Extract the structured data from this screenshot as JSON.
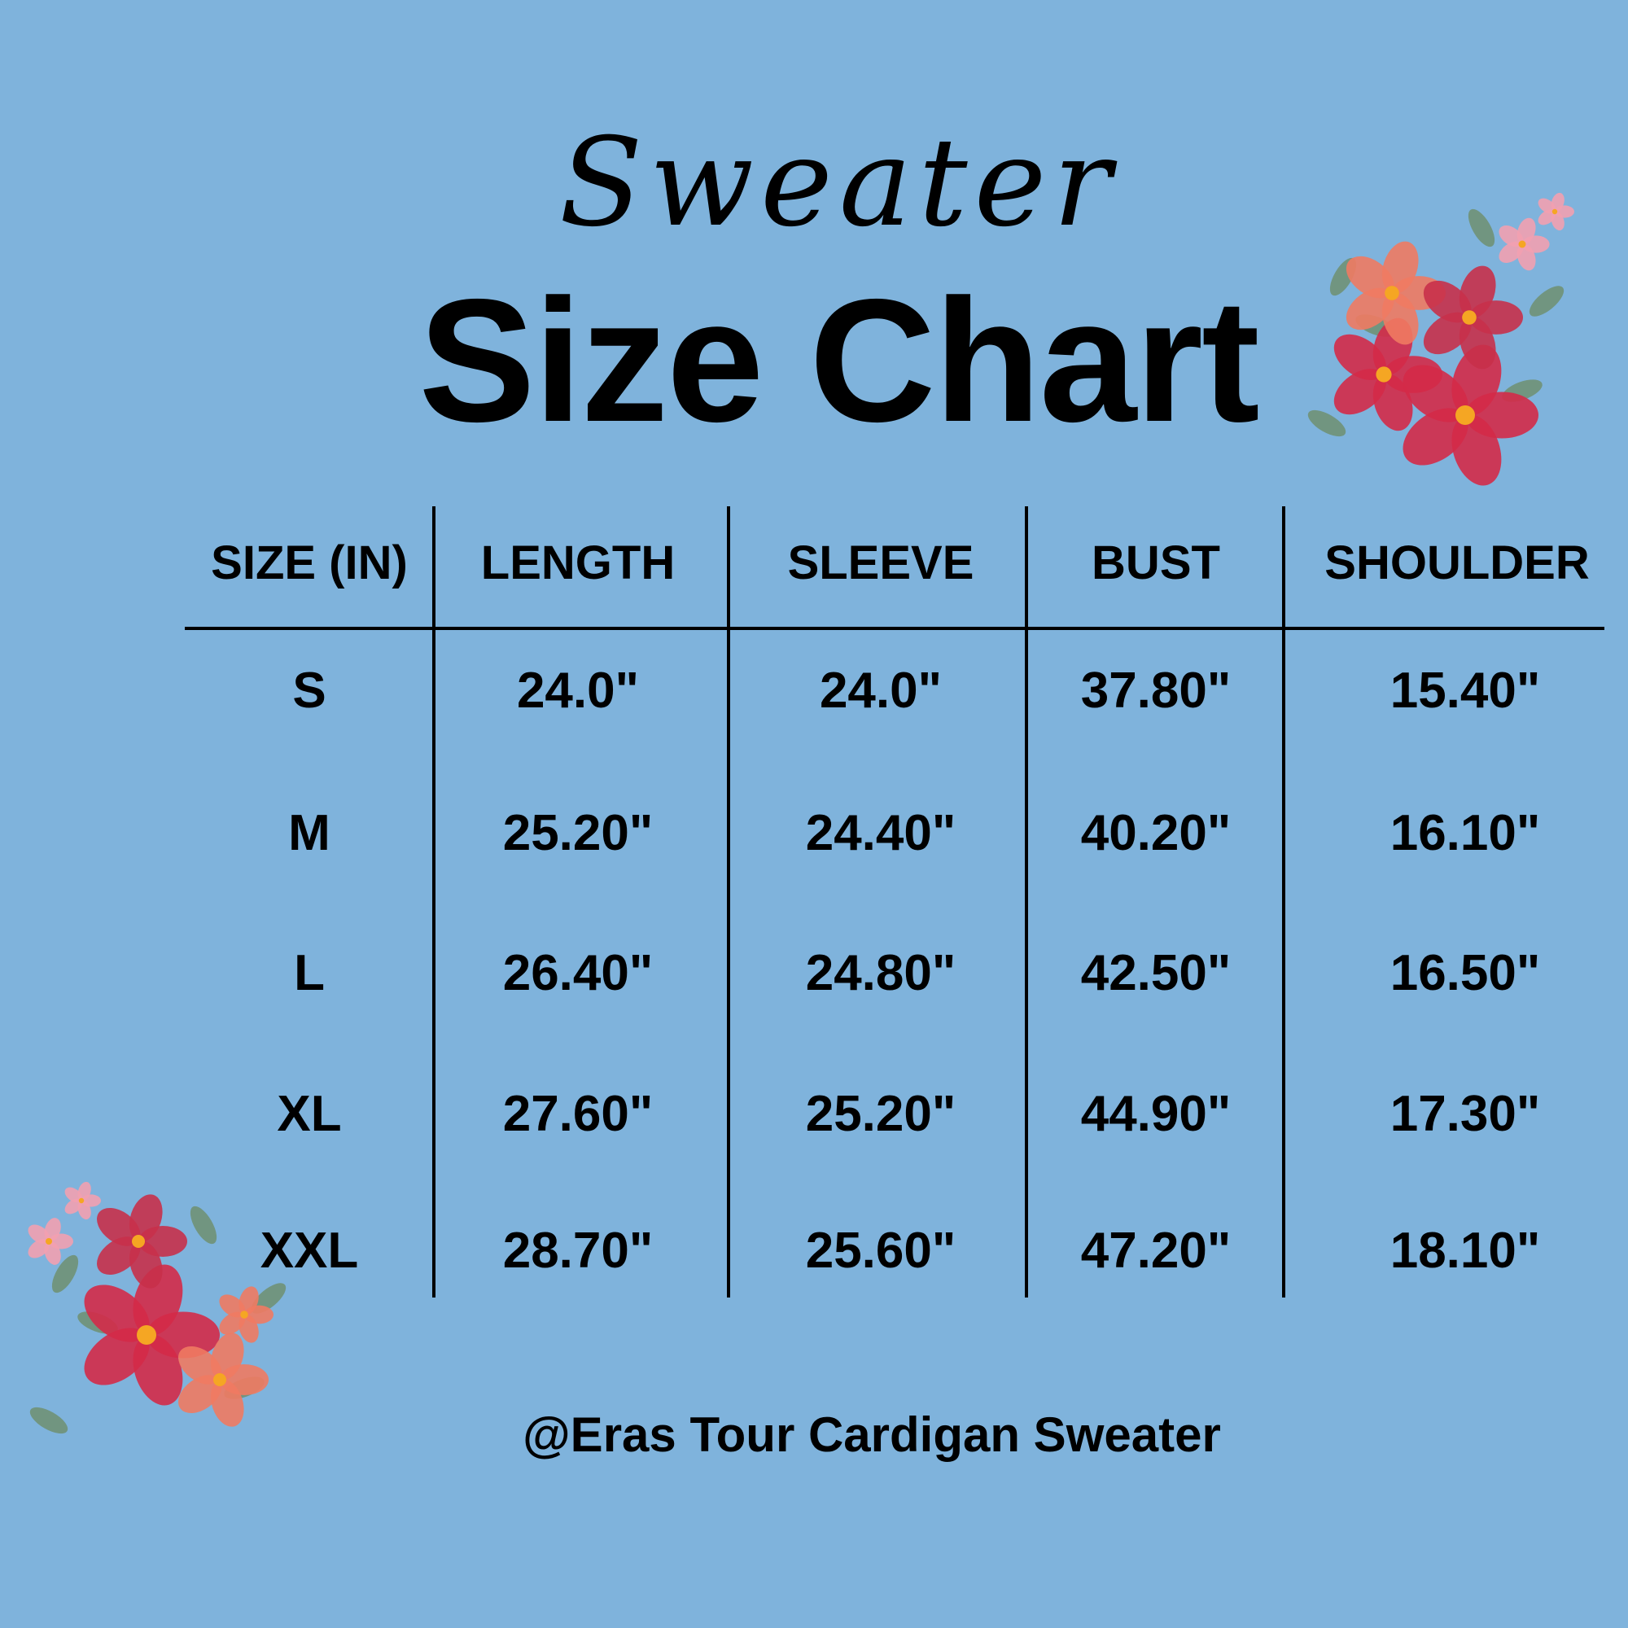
{
  "header": {
    "script_title": "Sweater",
    "title": "Size Chart"
  },
  "table": {
    "columns": [
      "SIZE (IN)",
      "LENGTH",
      "SLEEVE",
      "BUST",
      "SHOULDER"
    ],
    "rows": [
      [
        "S",
        "24.0\"",
        "24.0\"",
        "37.80\"",
        "15.40\""
      ],
      [
        "M",
        "25.20\"",
        "24.40\"",
        "40.20\"",
        "16.10\""
      ],
      [
        "L",
        "26.40\"",
        "24.80\"",
        "42.50\"",
        "16.50\""
      ],
      [
        "XL",
        "27.60\"",
        "25.20\"",
        "44.90\"",
        "17.30\""
      ],
      [
        "XXL",
        "28.70\"",
        "25.60\"",
        "47.20\"",
        "18.10\""
      ]
    ]
  },
  "footer": {
    "text": "@Eras Tour Cardigan Sweater"
  },
  "colors": {
    "background": "#7fb3dc",
    "text": "#000000",
    "flower_red": "#d42a48",
    "flower_coral": "#f07a62",
    "leaf": "#6f8f70"
  },
  "decorations": [
    "flower-bouquet-top-right",
    "flower-bouquet-bottom-left"
  ]
}
